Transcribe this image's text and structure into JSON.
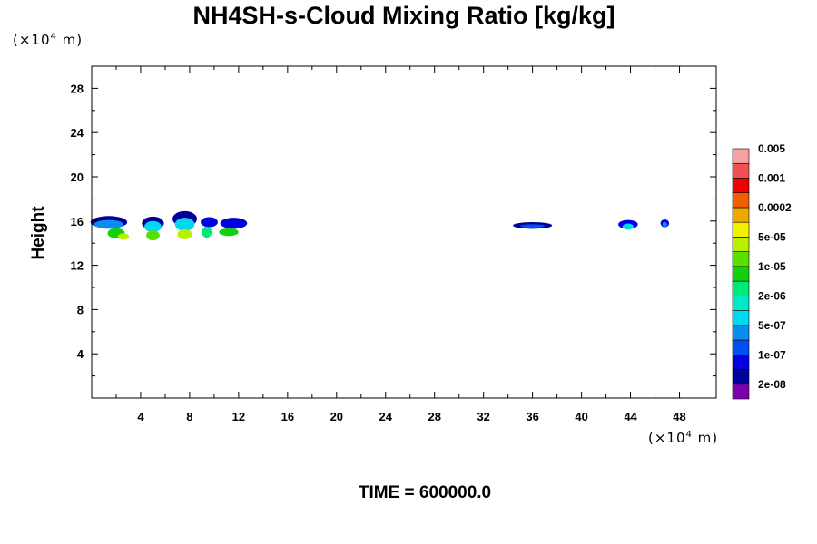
{
  "chart_data": {
    "type": "heatmap",
    "title": "NH4SH-s-Cloud Mixing Ratio [kg/kg]",
    "ylabel": "Height",
    "x_unit": "(×10",
    "x_unit_exp": "4",
    "x_unit_tail": " m)",
    "y_unit": "(×10",
    "y_unit_exp": "4",
    "y_unit_tail": " m)",
    "xlim": [
      0,
      51
    ],
    "ylim": [
      0,
      30
    ],
    "x_ticks": [
      4,
      8,
      12,
      16,
      20,
      24,
      28,
      32,
      36,
      40,
      44,
      48
    ],
    "y_ticks": [
      4,
      8,
      12,
      16,
      20,
      24,
      28
    ],
    "x_minor": [
      2,
      6,
      10,
      14,
      18,
      22,
      26,
      30,
      34,
      38,
      42,
      46,
      50
    ],
    "y_minor": [
      2,
      6,
      10,
      14,
      18,
      22,
      26
    ],
    "time_text": "TIME = 600000.0",
    "colorbar": {
      "colors": [
        "#7a00b0",
        "#000099",
        "#0000e0",
        "#0050f0",
        "#0a8cf0",
        "#00d8f0",
        "#00e8c8",
        "#00e87a",
        "#10d010",
        "#5ae000",
        "#b8f000",
        "#f0f000",
        "#f0a800",
        "#f06000",
        "#f00000",
        "#f05050",
        "#f8a0a0"
      ],
      "labels": [
        "2e-08",
        "1e-07",
        "5e-07",
        "2e-06",
        "1e-05",
        "5e-05",
        "0.0002",
        "0.001",
        "0.005"
      ]
    },
    "cloud_patches": [
      {
        "x": 1.4,
        "y": 15.9,
        "rx": 1.5,
        "ry": 0.55,
        "level": 1
      },
      {
        "x": 1.4,
        "y": 15.7,
        "rx": 1.2,
        "ry": 0.4,
        "level": 4
      },
      {
        "x": 2.0,
        "y": 14.9,
        "rx": 0.7,
        "ry": 0.45,
        "level": 8
      },
      {
        "x": 2.6,
        "y": 14.6,
        "rx": 0.45,
        "ry": 0.3,
        "level": 10
      },
      {
        "x": 5.0,
        "y": 15.8,
        "rx": 0.9,
        "ry": 0.6,
        "level": 1
      },
      {
        "x": 5.0,
        "y": 15.5,
        "rx": 0.7,
        "ry": 0.5,
        "level": 5
      },
      {
        "x": 5.0,
        "y": 14.7,
        "rx": 0.55,
        "ry": 0.45,
        "level": 9
      },
      {
        "x": 7.6,
        "y": 16.2,
        "rx": 1.0,
        "ry": 0.7,
        "level": 1
      },
      {
        "x": 7.6,
        "y": 15.7,
        "rx": 0.8,
        "ry": 0.6,
        "level": 5
      },
      {
        "x": 7.6,
        "y": 14.8,
        "rx": 0.6,
        "ry": 0.45,
        "level": 10
      },
      {
        "x": 9.6,
        "y": 15.9,
        "rx": 0.7,
        "ry": 0.45,
        "level": 2
      },
      {
        "x": 9.4,
        "y": 15.0,
        "rx": 0.4,
        "ry": 0.5,
        "level": 7
      },
      {
        "x": 11.6,
        "y": 15.8,
        "rx": 1.1,
        "ry": 0.5,
        "level": 2
      },
      {
        "x": 11.2,
        "y": 15.0,
        "rx": 0.8,
        "ry": 0.35,
        "level": 8
      },
      {
        "x": 36.0,
        "y": 15.6,
        "rx": 1.6,
        "ry": 0.3,
        "level": 1
      },
      {
        "x": 36.0,
        "y": 15.55,
        "rx": 1.0,
        "ry": 0.16,
        "level": 3
      },
      {
        "x": 43.8,
        "y": 15.7,
        "rx": 0.8,
        "ry": 0.4,
        "level": 2
      },
      {
        "x": 43.8,
        "y": 15.5,
        "rx": 0.45,
        "ry": 0.28,
        "level": 5
      },
      {
        "x": 46.8,
        "y": 15.8,
        "rx": 0.35,
        "ry": 0.35,
        "level": 2
      },
      {
        "x": 46.8,
        "y": 15.7,
        "rx": 0.2,
        "ry": 0.2,
        "level": 4
      }
    ]
  }
}
